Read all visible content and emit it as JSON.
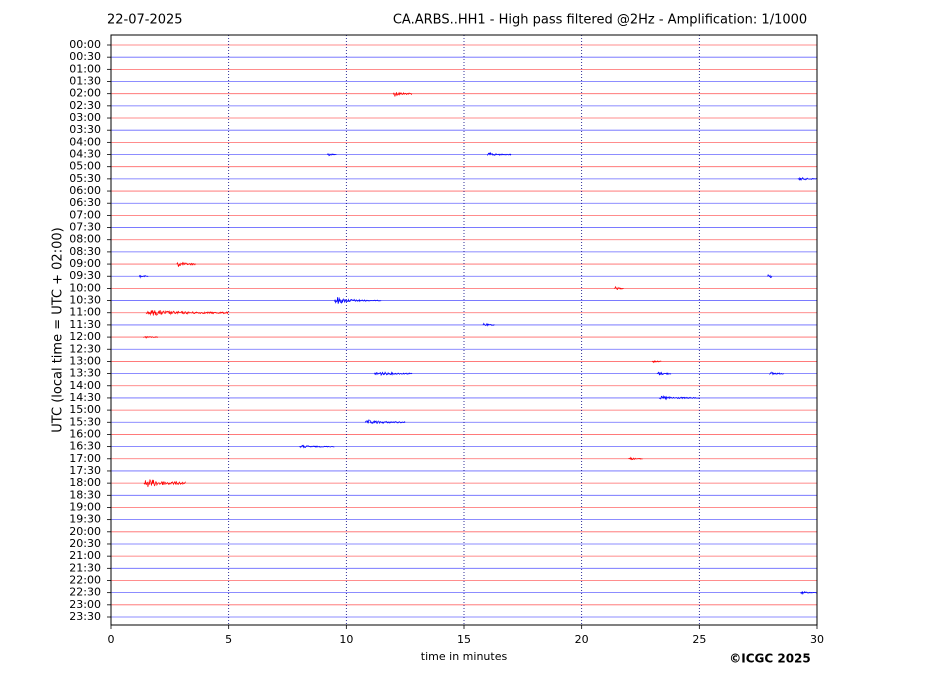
{
  "chart_data": {
    "type": "helicorder",
    "date": "22-07-2025",
    "title": "CA.ARBS..HH1 - High pass filtered @2Hz - Amplification: 1/1000",
    "ylabel": "UTC (local time = UTC + 02:00)",
    "xlabel": "time in minutes",
    "credit": "©ICGC 2025",
    "xlim": [
      0,
      30
    ],
    "xticks": [
      0,
      5,
      10,
      15,
      20,
      25,
      30
    ],
    "grid": true,
    "colors": [
      "#ff0000",
      "#0000ff"
    ],
    "categories": [
      "00:00",
      "00:30",
      "01:00",
      "01:30",
      "02:00",
      "02:30",
      "03:00",
      "03:30",
      "04:00",
      "04:30",
      "05:00",
      "05:30",
      "06:00",
      "06:30",
      "07:00",
      "07:30",
      "08:00",
      "08:30",
      "09:00",
      "09:30",
      "10:00",
      "10:30",
      "11:00",
      "11:30",
      "12:00",
      "12:30",
      "13:00",
      "13:30",
      "14:00",
      "14:30",
      "15:00",
      "15:30",
      "16:00",
      "16:30",
      "17:00",
      "17:30",
      "18:00",
      "18:30",
      "19:00",
      "19:30",
      "20:00",
      "20:30",
      "21:00",
      "21:30",
      "22:00",
      "22:30",
      "23:00",
      "23:30"
    ],
    "bursts": [
      {
        "row": 4,
        "x": [
          12.0,
          12.8
        ],
        "amplitude": 3
      },
      {
        "row": 9,
        "x": [
          9.2,
          9.6
        ],
        "amplitude": 2
      },
      {
        "row": 9,
        "x": [
          16.0,
          17.0
        ],
        "amplitude": 2
      },
      {
        "row": 11,
        "x": [
          29.2,
          30
        ],
        "amplitude": 2
      },
      {
        "row": 18,
        "x": [
          2.8,
          3.6
        ],
        "amplitude": 3
      },
      {
        "row": 19,
        "x": [
          1.2,
          1.6
        ],
        "amplitude": 2
      },
      {
        "row": 19,
        "x": [
          27.9,
          28.1
        ],
        "amplitude": 5
      },
      {
        "row": 20,
        "x": [
          21.4,
          21.8
        ],
        "amplitude": 2
      },
      {
        "row": 21,
        "x": [
          9.5,
          10.4
        ],
        "amplitude": 5
      },
      {
        "row": 21,
        "x": [
          10.4,
          11.5
        ],
        "amplitude": 1.5
      },
      {
        "row": 22,
        "x": [
          1.5,
          5
        ],
        "amplitude": 3
      },
      {
        "row": 23,
        "x": [
          15.8,
          16.3
        ],
        "amplitude": 2
      },
      {
        "row": 24,
        "x": [
          1.4,
          2.0
        ],
        "amplitude": 1.5
      },
      {
        "row": 26,
        "x": [
          23,
          23.4
        ],
        "amplitude": 1.5
      },
      {
        "row": 27,
        "x": [
          11.2,
          12.8
        ],
        "amplitude": 2.5
      },
      {
        "row": 27,
        "x": [
          23.2,
          23.8
        ],
        "amplitude": 2.5
      },
      {
        "row": 27,
        "x": [
          28,
          28.6
        ],
        "amplitude": 2
      },
      {
        "row": 29,
        "x": [
          23.3,
          25
        ],
        "amplitude": 2
      },
      {
        "row": 31,
        "x": [
          10.8,
          12.5
        ],
        "amplitude": 2.5
      },
      {
        "row": 33,
        "x": [
          8,
          9.5
        ],
        "amplitude": 1.5
      },
      {
        "row": 34,
        "x": [
          22,
          22.6
        ],
        "amplitude": 1.5
      },
      {
        "row": 36,
        "x": [
          1.4,
          3.2
        ],
        "amplitude": 5
      },
      {
        "row": 45,
        "x": [
          29.3,
          30
        ],
        "amplitude": 1.5
      }
    ]
  }
}
